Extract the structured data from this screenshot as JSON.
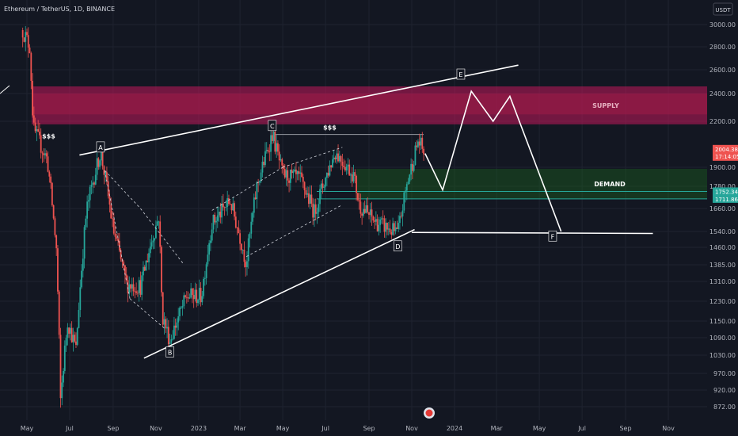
{
  "header": {
    "symbol_label": "Ethereum / TetherUS, 1D, BINANCE",
    "currency_button": "USDT"
  },
  "chart_data": {
    "type": "candlestick",
    "title": "Ethereum / TetherUS, 1D, BINANCE",
    "price_axis": {
      "ticks": [
        3000,
        2800,
        2600,
        2400,
        2200,
        1900,
        1780,
        1660,
        1540,
        1460,
        1385,
        1310,
        1230,
        1150,
        1090,
        1030,
        970,
        920,
        872
      ],
      "tick_labels": [
        "3000.00",
        "2800.00",
        "2600.00",
        "2400.00",
        "2200.00",
        "1900.00",
        "1780.00",
        "1660.00",
        "1540.00",
        "1460.00",
        "1385.00",
        "1310.00",
        "1230.00",
        "1150.00",
        "1090.00",
        "1030.00",
        "970.00",
        "920.00",
        "872.00"
      ],
      "ylim": [
        840,
        3300
      ]
    },
    "time_axis": {
      "labels": [
        "May",
        "Jul",
        "Sep",
        "Nov",
        "2023",
        "Mar",
        "May",
        "Jul",
        "Sep",
        "Nov",
        "2024",
        "Mar",
        "May",
        "Jul",
        "Sep",
        "Nov"
      ],
      "label_dates": [
        "2022-05-01",
        "2022-07-01",
        "2022-09-01",
        "2022-11-01",
        "2023-01-01",
        "2023-03-01",
        "2023-05-01",
        "2023-07-01",
        "2023-09-01",
        "2023-11-01",
        "2024-01-01",
        "2024-03-01",
        "2024-05-01",
        "2024-07-01",
        "2024-09-01",
        "2024-11-01"
      ],
      "xlim": [
        "2022-04-25",
        "2024-12-15"
      ]
    },
    "price_path": [
      [
        "2022-04-25",
        2950
      ],
      [
        "2022-05-05",
        2800
      ],
      [
        "2022-05-10",
        2150
      ],
      [
        "2022-05-30",
        1950
      ],
      [
        "2022-06-12",
        1450
      ],
      [
        "2022-06-18",
        890
      ],
      [
        "2022-06-28",
        1150
      ],
      [
        "2022-07-10",
        1050
      ],
      [
        "2022-07-25",
        1650
      ],
      [
        "2022-08-14",
        2000
      ],
      [
        "2022-09-01",
        1550
      ],
      [
        "2022-09-20",
        1300
      ],
      [
        "2022-10-10",
        1290
      ],
      [
        "2022-11-05",
        1620
      ],
      [
        "2022-11-10",
        1170
      ],
      [
        "2022-11-21",
        1080
      ],
      [
        "2022-12-15",
        1250
      ],
      [
        "2023-01-05",
        1250
      ],
      [
        "2023-01-20",
        1580
      ],
      [
        "2023-02-15",
        1700
      ],
      [
        "2023-03-10",
        1390
      ],
      [
        "2023-03-25",
        1780
      ],
      [
        "2023-04-16",
        2120
      ],
      [
        "2023-05-01",
        1850
      ],
      [
        "2023-05-25",
        1830
      ],
      [
        "2023-06-15",
        1640
      ],
      [
        "2023-07-15",
        2000
      ],
      [
        "2023-08-10",
        1850
      ],
      [
        "2023-08-18",
        1680
      ],
      [
        "2023-09-10",
        1590
      ],
      [
        "2023-10-12",
        1530
      ],
      [
        "2023-10-25",
        1790
      ],
      [
        "2023-11-10",
        2070
      ],
      [
        "2023-11-18",
        2004.38
      ]
    ],
    "last_price": {
      "value": "2004.38",
      "countdown": "17:14:05"
    },
    "price_lines": [
      {
        "value": "1752.34",
        "color": "#26a69a"
      },
      {
        "value": "1711.86",
        "color": "#26a69a"
      }
    ],
    "zones": [
      {
        "label": "SUPPLY",
        "from": 2180,
        "to": 2460,
        "color": "#c2185b"
      },
      {
        "label": "DEMAND",
        "from": 1710,
        "to": 1890,
        "color": "#1b5e20"
      }
    ],
    "trendlines": [
      {
        "name": "upper-resistance",
        "from": [
          "2022-07-15",
          1980
        ],
        "to": [
          "2024-04-01",
          2640
        ]
      },
      {
        "name": "lower-support",
        "from": [
          "2022-10-15",
          1020
        ],
        "to": [
          "2023-11-05",
          1550
        ]
      },
      {
        "name": "f-target-line",
        "from": [
          "2023-11-01",
          1535
        ],
        "to": [
          "2024-10-10",
          1530
        ]
      }
    ],
    "projection_path": [
      [
        "2023-11-20",
        1990
      ],
      [
        "2023-12-15",
        1760
      ],
      [
        "2024-01-25",
        2420
      ],
      [
        "2024-02-25",
        2200
      ],
      [
        "2024-03-20",
        2380
      ],
      [
        "2024-06-01",
        1540
      ]
    ],
    "wave_points": [
      {
        "label": "A",
        "date": "2022-08-14",
        "price": 2030
      },
      {
        "label": "B",
        "date": "2022-11-21",
        "price": 1040
      },
      {
        "label": "C",
        "date": "2023-04-16",
        "price": 2170
      },
      {
        "label": "D",
        "date": "2023-10-12",
        "price": 1465
      },
      {
        "label": "E",
        "date": "2024-01-10",
        "price": 2560
      },
      {
        "label": "F",
        "date": "2024-05-20",
        "price": 1515
      }
    ],
    "liquidity_marks": [
      {
        "label": "$$$",
        "date": "2022-06-01",
        "price": 2090
      },
      {
        "label": "$$$",
        "date": "2023-07-07",
        "price": 2145
      }
    ]
  }
}
